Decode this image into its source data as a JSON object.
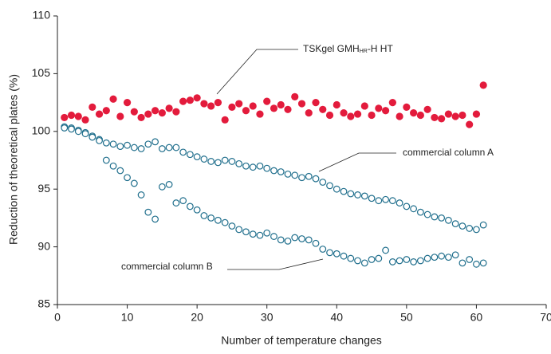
{
  "chart_data": {
    "type": "scatter",
    "xlabel": "Number of temperature changes",
    "ylabel": "Reduction of theoretical plates (%)",
    "xlim": [
      0,
      70
    ],
    "xticks": [
      0,
      10,
      20,
      30,
      40,
      50,
      60,
      70
    ],
    "ylim": [
      85,
      110
    ],
    "yticks": [
      85,
      90,
      95,
      100,
      105,
      110
    ],
    "grid": false,
    "x": [
      1,
      2,
      3,
      4,
      5,
      6,
      7,
      8,
      9,
      10,
      11,
      12,
      13,
      14,
      15,
      16,
      17,
      18,
      19,
      20,
      21,
      22,
      23,
      24,
      25,
      26,
      27,
      28,
      29,
      30,
      31,
      32,
      33,
      34,
      35,
      36,
      37,
      38,
      39,
      40,
      41,
      42,
      43,
      44,
      45,
      46,
      47,
      48,
      49,
      50,
      51,
      52,
      53,
      54,
      55,
      56,
      57,
      58,
      59,
      60,
      61
    ],
    "series": [
      {
        "name": "TSKgel GMH-HR-H HT",
        "color": "#e31b3c",
        "filled": true,
        "label_parts": [
          "TSKgel GMH",
          "HR",
          "-H HT"
        ],
        "values": [
          101.2,
          101.4,
          101.3,
          101.0,
          102.1,
          101.5,
          101.8,
          102.8,
          101.3,
          102.5,
          101.7,
          101.2,
          101.5,
          101.8,
          101.6,
          102.0,
          101.7,
          102.6,
          102.7,
          102.9,
          102.4,
          102.2,
          102.5,
          101.0,
          102.1,
          102.4,
          101.8,
          102.2,
          101.5,
          102.6,
          102.0,
          102.3,
          101.9,
          103.0,
          102.4,
          101.6,
          102.5,
          101.9,
          101.4,
          102.3,
          101.6,
          101.3,
          101.5,
          102.2,
          101.4,
          102.0,
          101.8,
          102.5,
          101.3,
          102.1,
          101.6,
          101.4,
          101.9,
          101.2,
          101.1,
          101.5,
          101.3,
          101.4,
          100.6,
          101.5,
          104.0
        ]
      },
      {
        "name": "commercial column A",
        "color": "#1f6e8c",
        "filled": false,
        "values": [
          100.3,
          100.2,
          100.0,
          99.8,
          99.5,
          99.2,
          99.0,
          98.9,
          98.7,
          98.8,
          98.6,
          98.5,
          98.9,
          99.1,
          98.5,
          98.6,
          98.6,
          98.2,
          98.0,
          97.8,
          97.6,
          97.4,
          97.3,
          97.5,
          97.4,
          97.2,
          97.0,
          96.9,
          97.0,
          96.8,
          96.6,
          96.5,
          96.3,
          96.2,
          96.0,
          96.1,
          95.9,
          95.6,
          95.3,
          95.0,
          94.8,
          94.6,
          94.5,
          94.4,
          94.2,
          94.0,
          94.1,
          94.0,
          93.8,
          93.5,
          93.3,
          93.0,
          92.8,
          92.6,
          92.5,
          92.3,
          92.0,
          91.8,
          91.6,
          91.5,
          91.9
        ]
      },
      {
        "name": "commercial column B",
        "color": "#1f6e8c",
        "filled": false,
        "values": [
          100.4,
          100.3,
          100.1,
          99.9,
          99.6,
          99.3,
          97.5,
          97.0,
          96.6,
          96.0,
          95.5,
          94.5,
          93.0,
          92.4,
          95.2,
          95.4,
          93.8,
          94.0,
          93.5,
          93.2,
          92.7,
          92.5,
          92.3,
          92.1,
          91.8,
          91.5,
          91.3,
          91.1,
          91.0,
          91.2,
          90.9,
          90.6,
          90.5,
          90.8,
          90.7,
          90.6,
          90.3,
          89.8,
          89.5,
          89.4,
          89.2,
          89.0,
          88.8,
          88.6,
          88.9,
          89.0,
          89.7,
          88.7,
          88.8,
          88.9,
          88.7,
          88.8,
          89.0,
          89.1,
          89.2,
          89.1,
          89.3,
          88.6,
          88.9,
          88.5,
          88.6
        ]
      }
    ]
  }
}
